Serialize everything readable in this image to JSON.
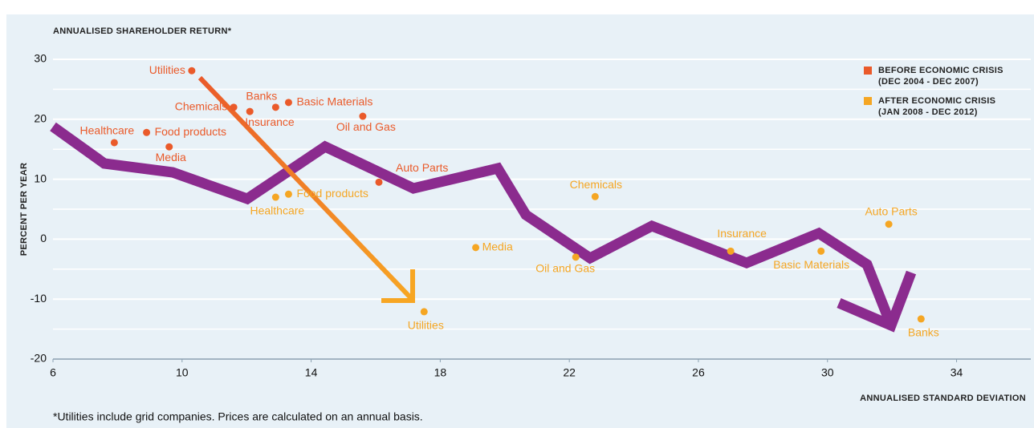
{
  "chart_data": {
    "type": "scatter",
    "y_top_label": "ANNUALISED SHAREHOLDER RETURN*",
    "ylabel": "PERCENT PER YEAR",
    "xlabel": "ANNUALISED STANDARD DEVIATION",
    "footnote": "*Utilities include grid companies. Prices are calculated on an annual basis.",
    "xlim": [
      6,
      36.3
    ],
    "xticks": [
      6,
      10,
      14,
      18,
      22,
      26,
      30,
      34
    ],
    "ylim": [
      -20,
      30
    ],
    "yticks": [
      -20,
      -10,
      0,
      10,
      20,
      30
    ],
    "ygrid": [
      -15,
      -5,
      5,
      15,
      25
    ],
    "grid": true,
    "legend": "top-right",
    "series": [
      {
        "name": "BEFORE ECONOMIC CRISIS",
        "period": "(DEC 2004 - DEC 2007)",
        "color": "#ea5a2a",
        "labels": [
          "Utilities",
          "Chemicals",
          "Insurance",
          "Banks",
          "Basic Materials",
          "Oil and Gas",
          "Healthcare",
          "Food products",
          "Media",
          "Auto Parts"
        ],
        "x": [
          10.3,
          11.6,
          12.1,
          12.9,
          13.3,
          15.6,
          7.9,
          8.9,
          9.6,
          16.1
        ],
        "values": [
          28.1,
          22,
          21.3,
          22,
          22.8,
          20.5,
          16.1,
          17.8,
          15.4,
          9.5
        ]
      },
      {
        "name": "AFTER ECONOMIC CRISIS",
        "period": "(JAN 2008 - DEC 2012)",
        "color": "#f5a623",
        "labels": [
          "Healthcare",
          "Food products",
          "Utilities",
          "Media",
          "Oil and Gas",
          "Chemicals",
          "Insurance",
          "Basic Materials",
          "Auto Parts",
          "Banks"
        ],
        "x": [
          12.9,
          13.3,
          17.5,
          19.1,
          22.2,
          22.8,
          27.0,
          29.8,
          31.9,
          32.9
        ],
        "values": [
          7.0,
          7.5,
          -12.1,
          -1.4,
          -3.0,
          7.1,
          -2.0,
          -2.0,
          2.5,
          -13.3
        ]
      }
    ]
  }
}
